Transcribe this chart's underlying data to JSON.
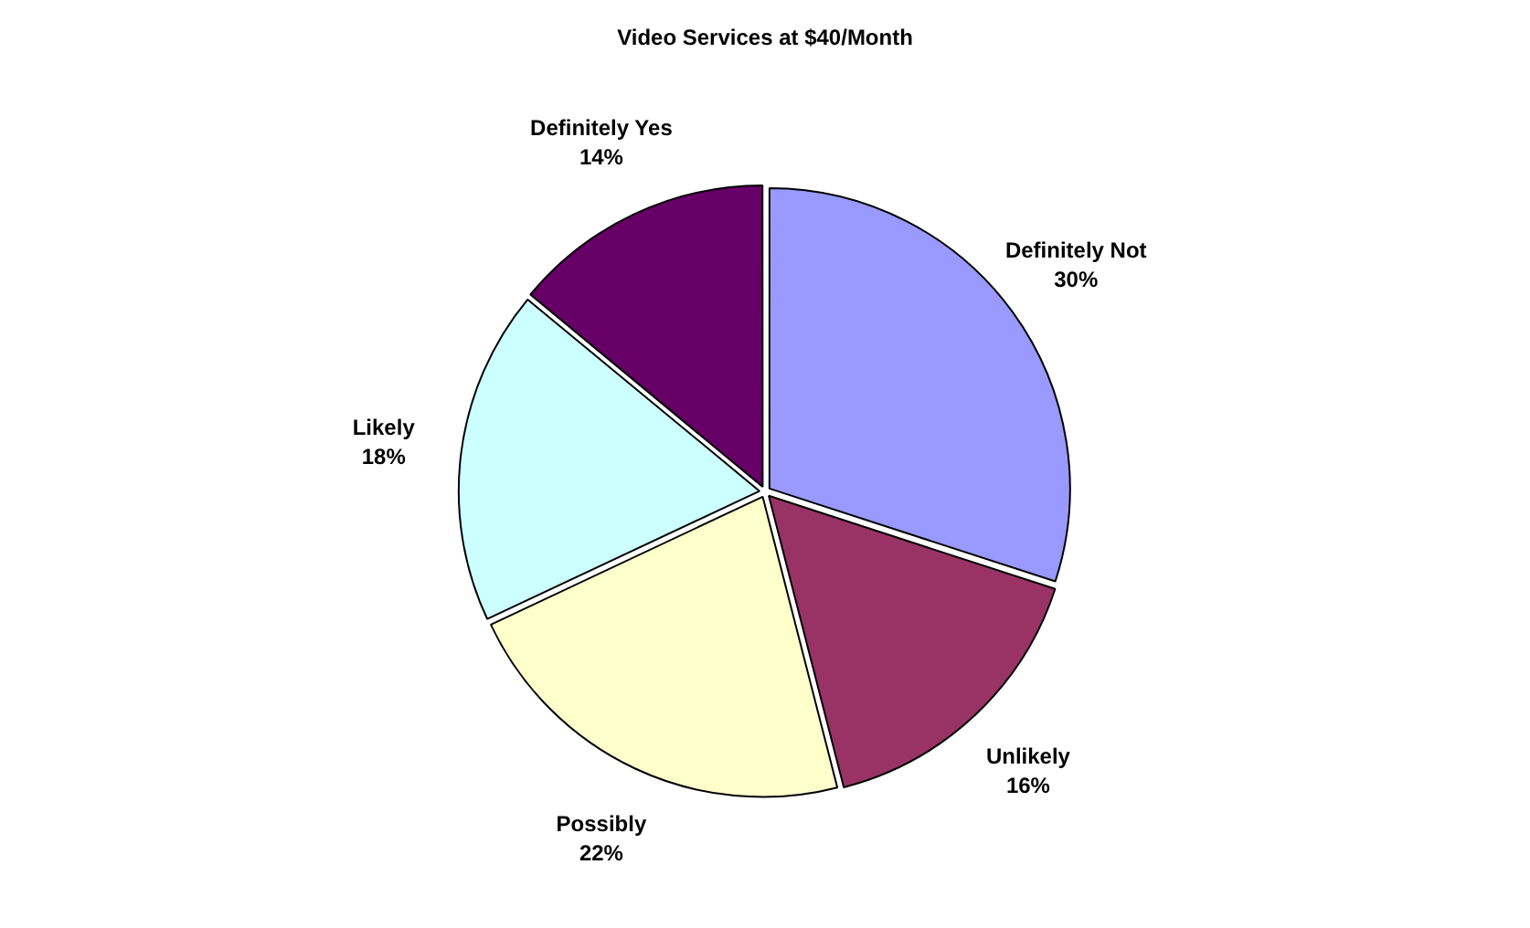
{
  "chart_data": {
    "type": "pie",
    "title": "Video Services at $40/Month",
    "categories": [
      "Definitely Not",
      "Unlikely",
      "Possibly",
      "Likely",
      "Definitely Yes"
    ],
    "values": [
      30,
      16,
      22,
      18,
      14
    ],
    "value_labels": [
      "30%",
      "16%",
      "22%",
      "18%",
      "14%"
    ],
    "colors": [
      "#9999ff",
      "#993366",
      "#ffffcc",
      "#ccffff",
      "#660066"
    ]
  }
}
